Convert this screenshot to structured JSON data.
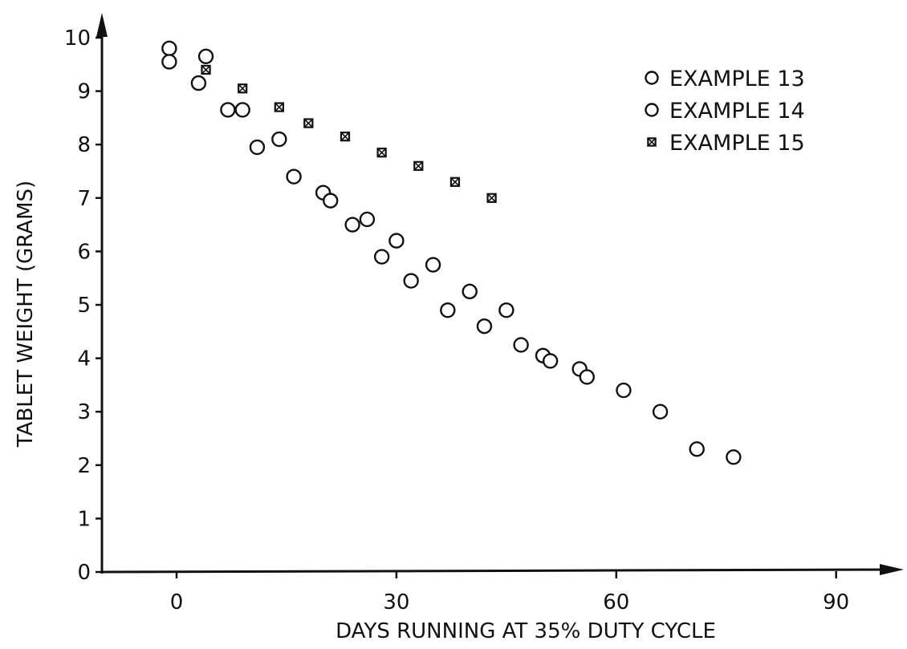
{
  "chart_data": {
    "type": "scatter",
    "title": "",
    "xlabel": "DAYS RUNNING AT 35% DUTY CYCLE",
    "ylabel": "TABLET WEIGHT (GRAMS)",
    "xlim": [
      -10,
      100
    ],
    "ylim": [
      0,
      10.2
    ],
    "x_ticks": [
      0,
      30,
      60,
      90
    ],
    "y_ticks": [
      0,
      1,
      2,
      3,
      4,
      5,
      6,
      7,
      8,
      9,
      10
    ],
    "grid": false,
    "legend_position": "top-right",
    "series": [
      {
        "name": "EXAMPLE 13",
        "marker": "circle",
        "points": [
          [
            -1,
            9.8
          ],
          [
            -1,
            9.55
          ],
          [
            4,
            9.65
          ],
          [
            3,
            9.15
          ],
          [
            7,
            8.65
          ],
          [
            9,
            8.65
          ],
          [
            11,
            7.95
          ],
          [
            14,
            8.1
          ],
          [
            16,
            7.4
          ],
          [
            20,
            7.1
          ],
          [
            21,
            6.95
          ],
          [
            24,
            6.5
          ],
          [
            26,
            6.6
          ],
          [
            28,
            5.9
          ],
          [
            30,
            6.2
          ],
          [
            32,
            5.45
          ],
          [
            35,
            5.75
          ],
          [
            37,
            4.9
          ],
          [
            40,
            5.25
          ],
          [
            42,
            4.6
          ],
          [
            45,
            4.9
          ],
          [
            47,
            4.25
          ],
          [
            50,
            4.05
          ],
          [
            51,
            3.95
          ],
          [
            55,
            3.8
          ],
          [
            56,
            3.65
          ],
          [
            61,
            3.4
          ],
          [
            66,
            3.0
          ],
          [
            71,
            2.3
          ],
          [
            76,
            2.15
          ]
        ]
      },
      {
        "name": "EXAMPLE 14",
        "marker": "circle",
        "points": []
      },
      {
        "name": "EXAMPLE 15",
        "marker": "crossed-square",
        "points": [
          [
            4,
            9.4
          ],
          [
            9,
            9.05
          ],
          [
            14,
            8.7
          ],
          [
            18,
            8.4
          ],
          [
            23,
            8.15
          ],
          [
            28,
            7.85
          ],
          [
            33,
            7.6
          ],
          [
            38,
            7.3
          ],
          [
            43,
            7.0
          ]
        ]
      }
    ]
  }
}
